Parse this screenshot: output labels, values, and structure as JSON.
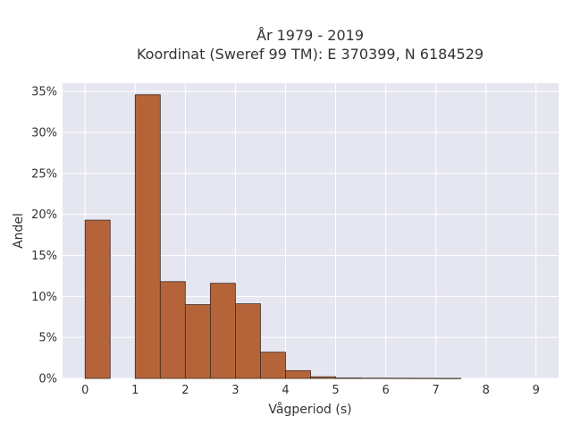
{
  "chart_data": {
    "type": "bar",
    "title_line1": "År 1979 - 2019",
    "title_line2": "Koordinat (Sweref 99 TM): E 370399, N 6184529",
    "xlabel": "Vågperiod (s)",
    "ylabel": "Andel",
    "xlim": [
      -0.45,
      9.45
    ],
    "ylim": [
      0,
      0.36
    ],
    "x_ticks": [
      0,
      1,
      2,
      3,
      4,
      5,
      6,
      7,
      8,
      9
    ],
    "y_ticks": [
      0,
      0.05,
      0.1,
      0.15,
      0.2,
      0.25,
      0.3,
      0.35
    ],
    "y_tick_labels": [
      "0%",
      "5%",
      "10%",
      "15%",
      "20%",
      "25%",
      "30%",
      "35%"
    ],
    "bin_width": 0.5,
    "bins": [
      {
        "x0": 0.0,
        "value": 0.193
      },
      {
        "x0": 0.5,
        "value": 0.0
      },
      {
        "x0": 1.0,
        "value": 0.346
      },
      {
        "x0": 1.5,
        "value": 0.118
      },
      {
        "x0": 2.0,
        "value": 0.09
      },
      {
        "x0": 2.5,
        "value": 0.116
      },
      {
        "x0": 3.0,
        "value": 0.091
      },
      {
        "x0": 3.5,
        "value": 0.032
      },
      {
        "x0": 4.0,
        "value": 0.0095
      },
      {
        "x0": 4.5,
        "value": 0.002
      },
      {
        "x0": 5.0,
        "value": 0.0006
      },
      {
        "x0": 5.5,
        "value": 0.0004
      },
      {
        "x0": 6.0,
        "value": 0.0003
      },
      {
        "x0": 6.5,
        "value": 0.0002
      },
      {
        "x0": 7.0,
        "value": 0.0001
      }
    ],
    "grid": true,
    "colors": {
      "bar_fill": "#b5643a",
      "bar_stroke": "#3b2a1e",
      "plot_bg": "#e5e6f0",
      "grid": "#ffffff"
    }
  }
}
